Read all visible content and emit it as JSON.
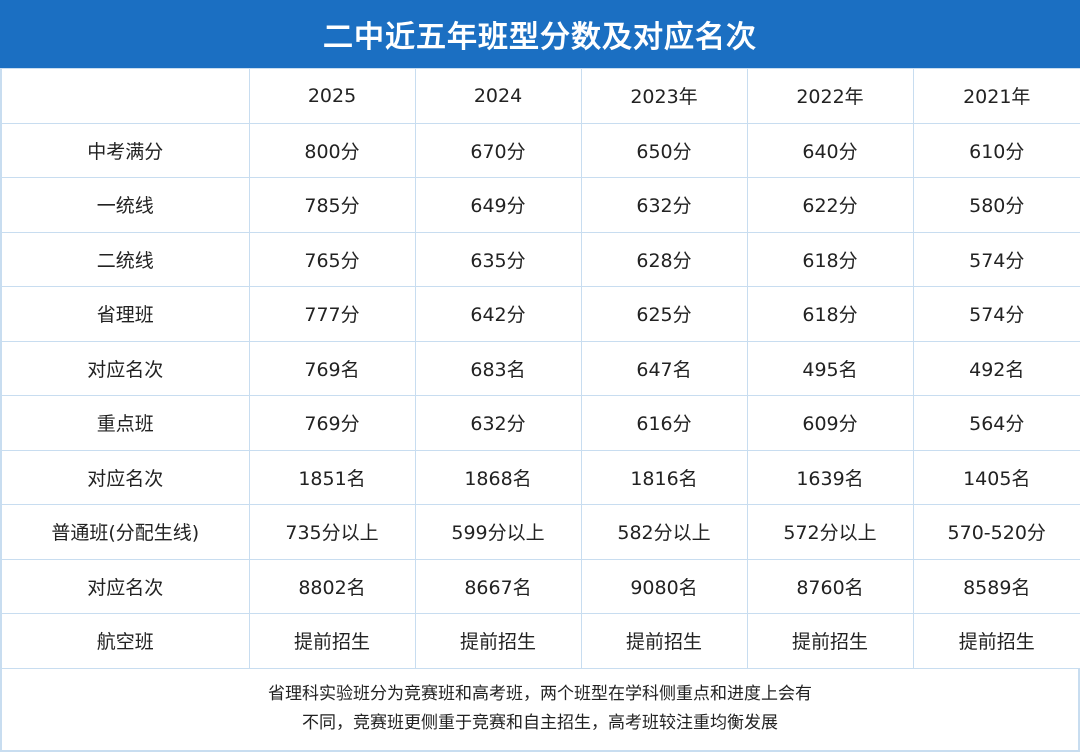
{
  "header": {
    "title": "二中近五年班型分数及对应名次"
  },
  "table": {
    "columns": [
      "2025",
      "2024",
      "2023年",
      "2022年",
      "2021年"
    ],
    "rows": [
      [
        "中考满分",
        "800分",
        "670分",
        "650分",
        "640分",
        "610分"
      ],
      [
        "一统线",
        "785分",
        "649分",
        "632分",
        "622分",
        "580分"
      ],
      [
        "二统线",
        "765分",
        "635分",
        "628分",
        "618分",
        "574分"
      ],
      [
        "省理班",
        "777分",
        "642分",
        "625分",
        "618分",
        "574分"
      ],
      [
        "对应名次",
        "769名",
        "683名",
        "647名",
        "495名",
        "492名"
      ],
      [
        "重点班",
        "769分",
        "632分",
        "616分",
        "609分",
        "564分"
      ],
      [
        "对应名次",
        "1851名",
        "1868名",
        "1816名",
        "1639名",
        "1405名"
      ],
      [
        "普通班(分配生线)",
        "735分以上",
        "599分以上",
        "582分以上",
        "572分以上",
        "570-520分"
      ],
      [
        "对应名次",
        "8802名",
        "8667名",
        "9080名",
        "8760名",
        "8589名"
      ],
      [
        "航空班",
        "提前招生",
        "提前招生",
        "提前招生",
        "提前招生",
        "提前招生"
      ]
    ]
  },
  "note": {
    "lines": [
      "省理科实验班分为竞赛班和高考班，两个班型在学科侧重点和进度上会有",
      "不同，竞赛班更侧重于竞赛和自主招生，高考班较注重均衡发展"
    ]
  }
}
